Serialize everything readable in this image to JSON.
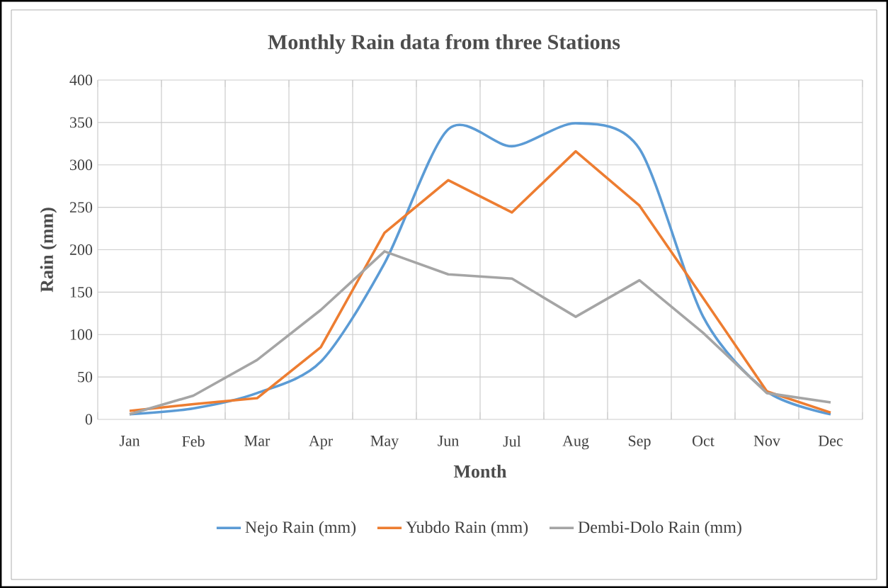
{
  "chart_data": {
    "type": "line",
    "title": "Monthly  Rain data from three Stations",
    "xlabel": "Month",
    "ylabel": "Rain (mm)",
    "categories": [
      "Jan",
      "Feb",
      "Mar",
      "Apr",
      "May",
      "Jun",
      "Jul",
      "Aug",
      "Sep",
      "Oct",
      "Nov",
      "Dec"
    ],
    "series": [
      {
        "name": "Nejo Rain (mm)",
        "color": "#5b9bd5",
        "values": [
          6,
          13,
          31,
          68,
          184,
          342,
          322,
          349,
          319,
          121,
          33,
          6
        ]
      },
      {
        "name": "Yubdo Rain (mm)",
        "color": "#ed7d31",
        "values": [
          10,
          18,
          25,
          85,
          220,
          282,
          244,
          316,
          252,
          143,
          33,
          8
        ]
      },
      {
        "name": "Dembi-Dolo Rain (mm)",
        "color": "#a5a5a5",
        "values": [
          6,
          28,
          70,
          129,
          198,
          171,
          166,
          121,
          164,
          102,
          31,
          20
        ]
      }
    ],
    "ylim": [
      0,
      400
    ],
    "yticks": [
      0,
      50,
      100,
      150,
      200,
      250,
      300,
      350,
      400
    ],
    "grid": true,
    "legend": "bottom",
    "marker": "none",
    "line_style": "solid"
  }
}
